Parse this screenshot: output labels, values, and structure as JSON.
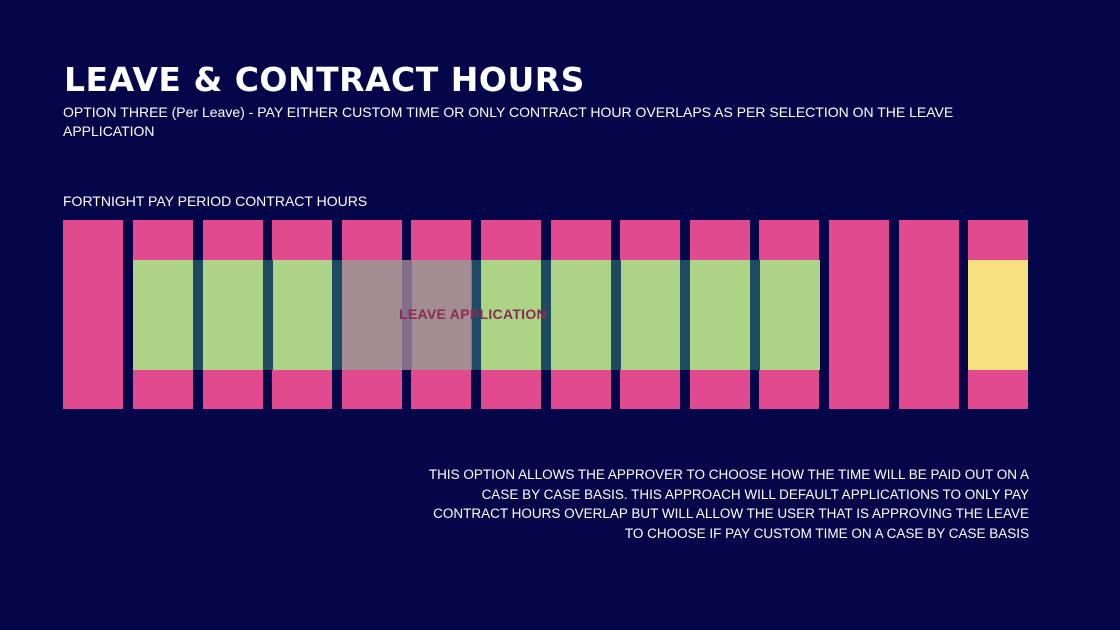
{
  "slide": {
    "title": "LEAVE & CONTRACT HOURS",
    "subtitle": "OPTION THREE (Per Leave) - PAY EITHER CUSTOM TIME OR ONLY CONTRACT HOUR OVERLAPS AS PER SELECTION ON THE LEAVE APPLICATION",
    "section_label": "FORTNIGHT PAY PERIOD CONTRACT HOURS",
    "leave_label": "LEAVE APPLICATION",
    "note": "THIS OPTION ALLOWS THE APPROVER TO CHOOSE HOW THE TIME WILL BE PAID OUT ON A CASE BY CASE BASIS. THIS APPROACH WILL DEFAULT APPLICATIONS TO ONLY PAY CONTRACT HOURS OVERLAP BUT WILL ALLOW THE USER THAT IS APPROVING THE LEAVE TO CHOOSE IF  PAY CUSTOM TIME ON A CASE BY CASE BASIS"
  },
  "diagram": {
    "day_count": 14,
    "colors": {
      "background": "#05064a",
      "contract_hours": "#e24a8f",
      "paid_overlap": "#acd386",
      "custom_time": "#f7e07e",
      "leave_overlay": "#a07896"
    }
  }
}
